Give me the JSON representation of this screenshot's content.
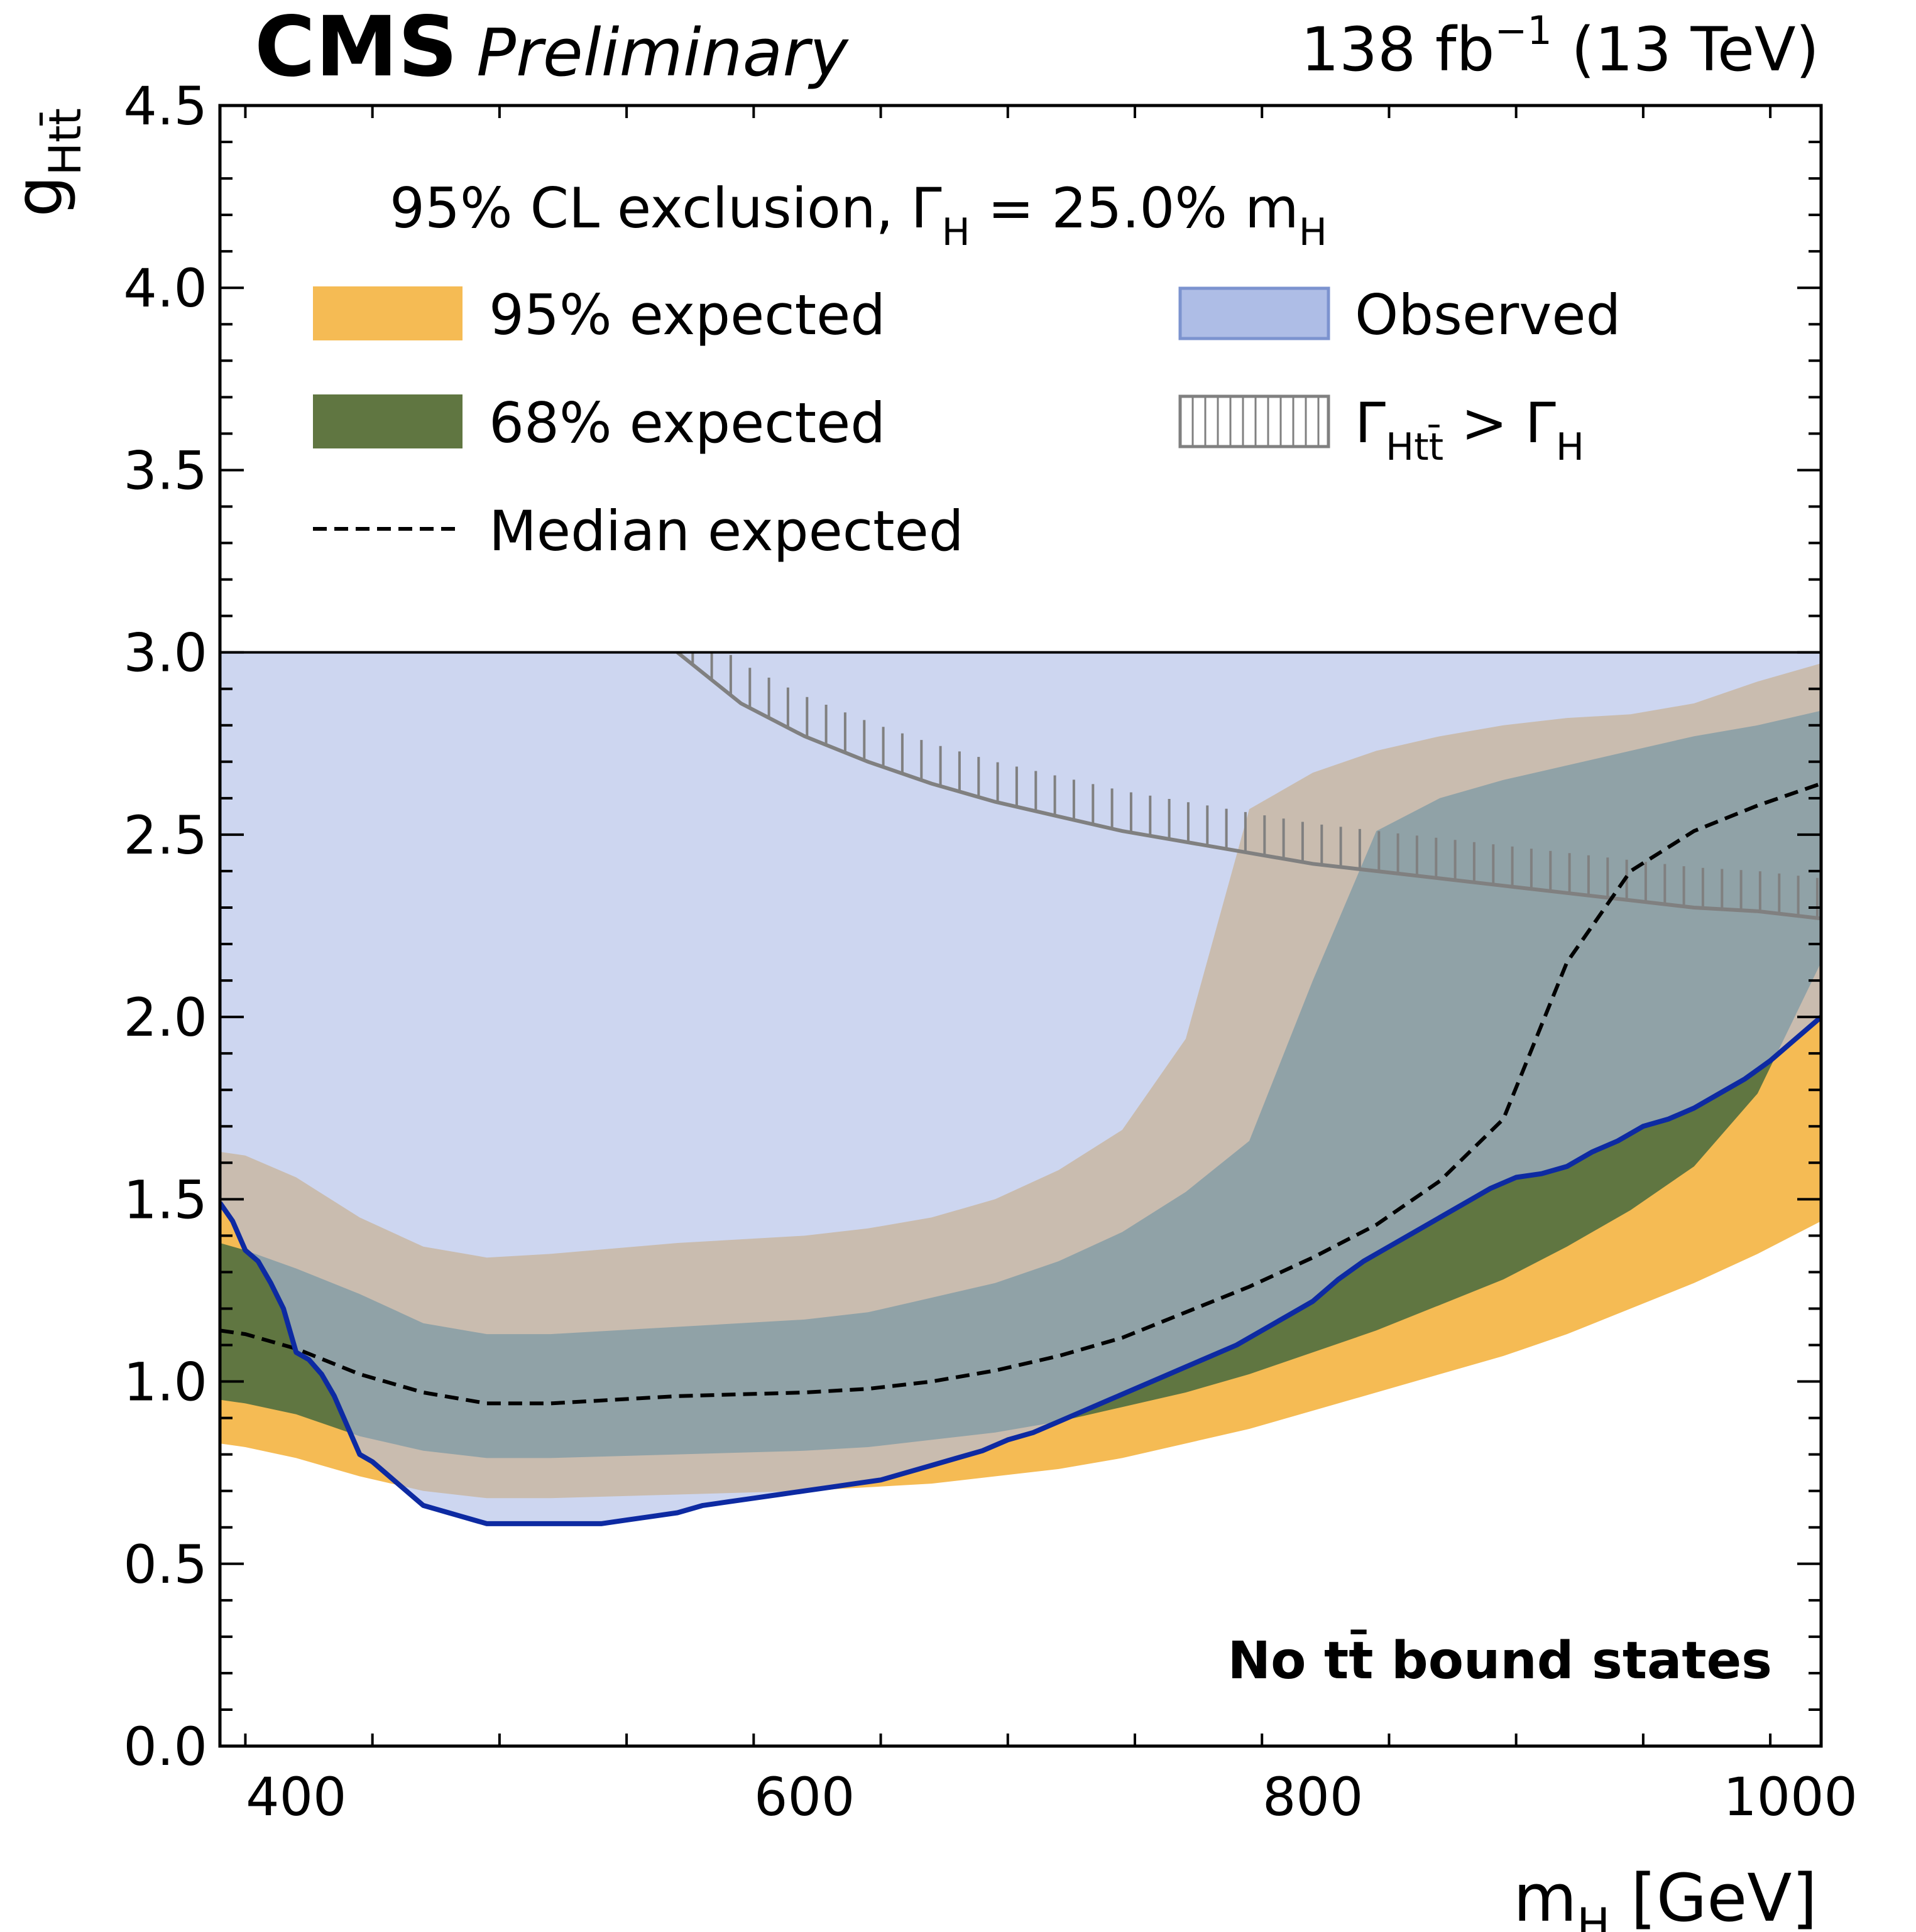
{
  "header": {
    "experiment": "CMS",
    "status": "Preliminary",
    "lumi_value": "138 fb",
    "lumi_exp": "−1",
    "energy": " (13 TeV)"
  },
  "chart_data": {
    "type": "area",
    "xlabel": {
      "main": "m",
      "sub": "H",
      "unit": " [GeV]"
    },
    "ylabel": {
      "main": "g",
      "sub": "Htt̄"
    },
    "xlim": [
      370,
      1000
    ],
    "ylim": [
      0,
      4.5
    ],
    "xticks": [
      400,
      600,
      800,
      1000
    ],
    "yticks": [
      0.0,
      0.5,
      1.0,
      1.5,
      2.0,
      2.5,
      3.0,
      3.5,
      4.0,
      4.5
    ],
    "legend_region_lower_edge": 3.0,
    "legend": {
      "title_main": "95% CL exclusion, Γ",
      "title_sub1": "H",
      "title_mid": " = 25.0% m",
      "title_sub2": "H",
      "items": {
        "band95": "95% expected",
        "band68": "68% expected",
        "median": "Median expected",
        "observed": "Observed",
        "width_main": "Γ",
        "width_sub1": "Htt̄",
        "width_mid": " > Γ",
        "width_sub2": "H"
      }
    },
    "annotation": "No tt̄ bound states",
    "colors": {
      "band95": "#f5bb54",
      "band68": "#607641",
      "observed_fill": "#aebde6",
      "observed_line": "#0d2aa2",
      "median": "#000000",
      "width_limit": "#808080"
    },
    "x": [
      370,
      380,
      400,
      425,
      450,
      475,
      500,
      550,
      600,
      625,
      650,
      675,
      700,
      725,
      750,
      775,
      800,
      825,
      850,
      875,
      900,
      925,
      950,
      975,
      1000
    ],
    "series": [
      {
        "name": "Median expected",
        "role": "median",
        "values": [
          1.14,
          1.13,
          1.09,
          1.02,
          0.97,
          0.94,
          0.94,
          0.96,
          0.97,
          0.98,
          1.0,
          1.03,
          1.07,
          1.12,
          1.19,
          1.26,
          1.34,
          1.43,
          1.55,
          1.72,
          2.15,
          2.4,
          2.51,
          2.58,
          2.64
        ]
      },
      {
        "name": "68% expected upper",
        "role": "band68_hi",
        "values": [
          1.38,
          1.36,
          1.31,
          1.24,
          1.16,
          1.13,
          1.13,
          1.15,
          1.17,
          1.19,
          1.23,
          1.27,
          1.33,
          1.41,
          1.52,
          1.66,
          2.1,
          2.51,
          2.6,
          2.65,
          2.69,
          2.73,
          2.77,
          2.8,
          2.84
        ]
      },
      {
        "name": "68% expected lower",
        "role": "band68_lo",
        "values": [
          0.95,
          0.94,
          0.91,
          0.85,
          0.81,
          0.79,
          0.79,
          0.8,
          0.81,
          0.82,
          0.84,
          0.86,
          0.89,
          0.93,
          0.97,
          1.02,
          1.08,
          1.14,
          1.21,
          1.28,
          1.37,
          1.47,
          1.59,
          1.79,
          2.15
        ]
      },
      {
        "name": "95% expected upper",
        "role": "band95_hi",
        "values": [
          1.63,
          1.62,
          1.56,
          1.45,
          1.37,
          1.34,
          1.35,
          1.38,
          1.4,
          1.42,
          1.45,
          1.5,
          1.58,
          1.69,
          1.94,
          2.57,
          2.67,
          2.73,
          2.77,
          2.8,
          2.82,
          2.83,
          2.86,
          2.92,
          2.97
        ]
      },
      {
        "name": "95% expected lower",
        "role": "band95_lo",
        "values": [
          0.83,
          0.82,
          0.79,
          0.74,
          0.7,
          0.68,
          0.68,
          0.69,
          0.7,
          0.71,
          0.72,
          0.74,
          0.76,
          0.79,
          0.83,
          0.87,
          0.92,
          0.97,
          1.02,
          1.07,
          1.13,
          1.2,
          1.27,
          1.35,
          1.44
        ]
      },
      {
        "name": "Observed",
        "role": "observed",
        "x": [
          370,
          375,
          380,
          385,
          390,
          395,
          400,
          405,
          410,
          415,
          420,
          425,
          430,
          435,
          440,
          445,
          450,
          455,
          460,
          465,
          470,
          475,
          480,
          490,
          500,
          510,
          520,
          530,
          540,
          550,
          560,
          570,
          580,
          590,
          600,
          610,
          620,
          630,
          640,
          650,
          660,
          670,
          680,
          690,
          700,
          710,
          720,
          730,
          740,
          750,
          760,
          770,
          780,
          790,
          800,
          810,
          820,
          830,
          840,
          850,
          860,
          870,
          880,
          890,
          900,
          910,
          920,
          930,
          940,
          950,
          960,
          970,
          980,
          990,
          1000
        ],
        "values": [
          1.49,
          1.44,
          1.36,
          1.33,
          1.27,
          1.2,
          1.08,
          1.06,
          1.02,
          0.96,
          0.88,
          0.8,
          0.78,
          0.75,
          0.72,
          0.69,
          0.66,
          0.65,
          0.64,
          0.63,
          0.62,
          0.61,
          0.61,
          0.61,
          0.61,
          0.61,
          0.61,
          0.62,
          0.63,
          0.64,
          0.66,
          0.67,
          0.68,
          0.69,
          0.7,
          0.71,
          0.72,
          0.73,
          0.75,
          0.77,
          0.79,
          0.81,
          0.84,
          0.86,
          0.89,
          0.92,
          0.95,
          0.98,
          1.01,
          1.04,
          1.07,
          1.1,
          1.14,
          1.18,
          1.22,
          1.28,
          1.33,
          1.37,
          1.41,
          1.45,
          1.49,
          1.53,
          1.56,
          1.57,
          1.59,
          1.63,
          1.66,
          1.7,
          1.72,
          1.75,
          1.79,
          1.83,
          1.88,
          1.94,
          2.0
        ]
      },
      {
        "name": "Γ(Htt̄) > Γ(H) boundary",
        "role": "width_limit",
        "x": [
          550,
          575,
          600,
          625,
          650,
          675,
          700,
          725,
          750,
          775,
          800,
          825,
          850,
          875,
          900,
          925,
          950,
          975,
          1000
        ],
        "values": [
          3.0,
          2.86,
          2.77,
          2.7,
          2.64,
          2.59,
          2.55,
          2.51,
          2.48,
          2.45,
          2.42,
          2.4,
          2.38,
          2.36,
          2.34,
          2.32,
          2.3,
          2.29,
          2.27
        ]
      }
    ]
  }
}
